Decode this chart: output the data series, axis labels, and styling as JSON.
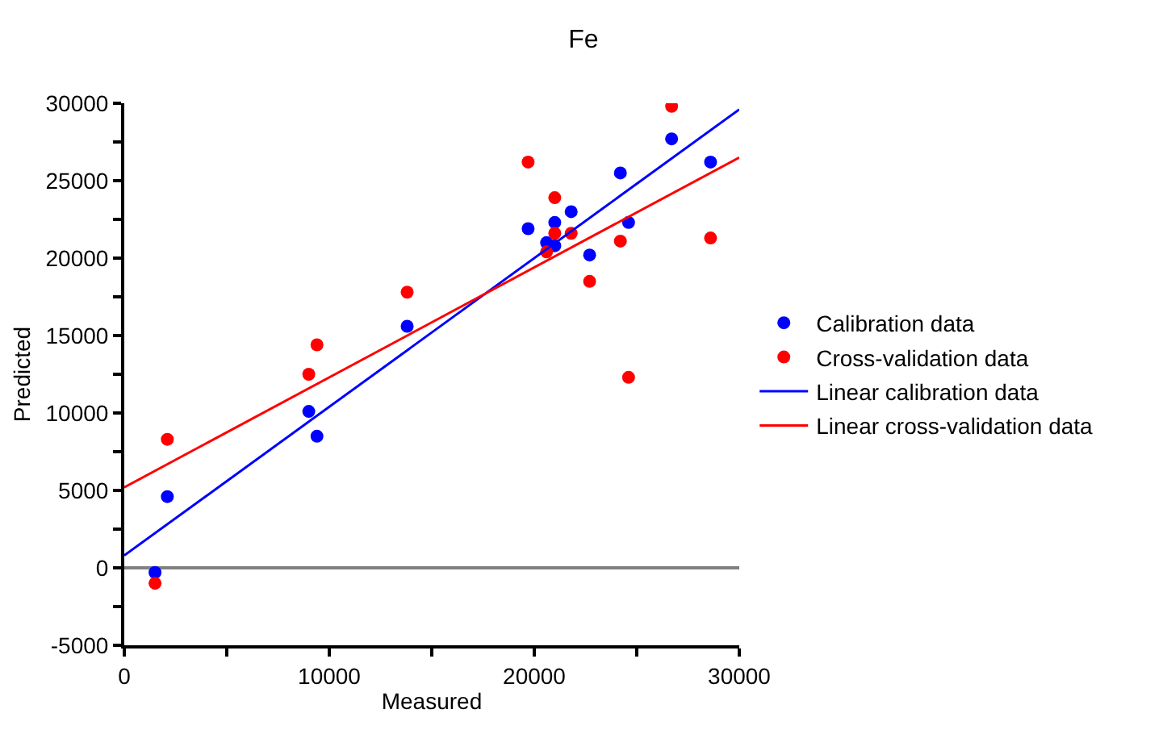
{
  "chart_data": {
    "type": "scatter",
    "title": "Fe",
    "xlabel": "Measured",
    "ylabel": "Predicted",
    "xlim": [
      0,
      30000
    ],
    "ylim": [
      -5000,
      30000
    ],
    "xticks": [
      0,
      {
        "value": 5000,
        "label": null
      },
      10000,
      {
        "value": 15000,
        "label": null
      },
      20000,
      {
        "value": 25000,
        "label": null
      },
      30000
    ],
    "yticks": [
      -5000,
      {
        "value": -2500,
        "label": null
      },
      0,
      {
        "value": 2500,
        "label": null
      },
      5000,
      {
        "value": 7500,
        "label": null
      },
      10000,
      {
        "value": 12500,
        "label": null
      },
      15000,
      {
        "value": 17500,
        "label": null
      },
      20000,
      {
        "value": 22500,
        "label": null
      },
      25000,
      {
        "value": 27500,
        "label": null
      },
      30000
    ],
    "grid": false,
    "legend": "right",
    "marker": "circle",
    "ref_lines": [
      {
        "axis": "y",
        "value": 0,
        "label": null,
        "color": "#808080"
      }
    ],
    "series": [
      {
        "name": "Calibration data",
        "color": "#0000ff",
        "x": [
          1500,
          2100,
          9000,
          9400,
          13800,
          19700,
          20600,
          21000,
          21000,
          21800,
          22700,
          24200,
          24600,
          26700,
          28600
        ],
        "values": [
          -300,
          4600,
          10100,
          8500,
          15600,
          21900,
          21000,
          22300,
          20800,
          23000,
          20200,
          25500,
          22300,
          27700,
          26200
        ]
      },
      {
        "name": "Cross-validation data",
        "color": "#ff0000",
        "x": [
          1500,
          2100,
          9000,
          9400,
          13800,
          19700,
          21000,
          21000,
          20600,
          21800,
          22700,
          24200,
          24600,
          26700,
          28600
        ],
        "values": [
          -1000,
          8300,
          12500,
          14400,
          17800,
          26200,
          23900,
          21600,
          20400,
          21600,
          18500,
          21100,
          12300,
          29800,
          21300
        ]
      },
      {
        "name": "Linear calibration data",
        "color": "#0000ff",
        "type": "line",
        "marker": "none",
        "line_style": "solid",
        "x": [
          0,
          30000
        ],
        "values": [
          800,
          29600
        ]
      },
      {
        "name": "Linear cross-validation data",
        "color": "#ff0000",
        "type": "line",
        "marker": "none",
        "line_style": "solid",
        "x": [
          0,
          30000
        ],
        "values": [
          5200,
          26500
        ]
      }
    ]
  }
}
